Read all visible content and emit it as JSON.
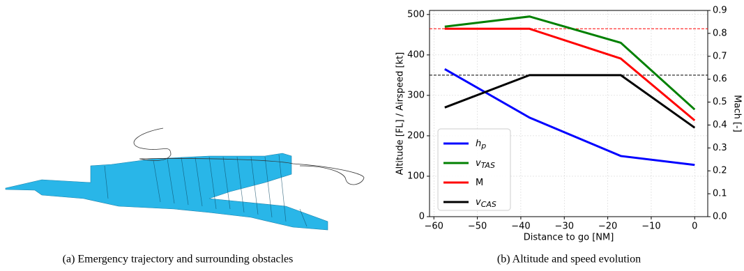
{
  "captions": {
    "a": "(a) Emergency trajectory and surrounding obstacles",
    "b": "(b) Altitude and speed evolution"
  },
  "chart_data": {
    "type": "line",
    "xlabel": "Distance to go [NM]",
    "ylabel": "Altitude [FL] / Airspeed [kt]",
    "y2label": "Mach [-]",
    "x": [
      -57.5,
      -38,
      -17,
      0
    ],
    "series": [
      {
        "name": "h",
        "subscript": "p",
        "color": "#0000ff",
        "values": [
          365,
          245,
          150,
          128
        ]
      },
      {
        "name": "v",
        "subscript": "TAS",
        "color": "#008000",
        "values": [
          470,
          495,
          430,
          265
        ]
      },
      {
        "name": "M",
        "color": "#ff0000",
        "axis": "y2",
        "values": [
          0.82,
          0.82,
          0.69,
          0.42
        ]
      },
      {
        "name": "v",
        "subscript": "CAS",
        "color": "#000000",
        "values": [
          270,
          350,
          350,
          220
        ]
      }
    ],
    "hlines": [
      {
        "value": 0.82,
        "axis": "y2",
        "color": "#ff0000"
      },
      {
        "value": 350,
        "color": "#000000"
      }
    ],
    "xlim": [
      -61,
      3
    ],
    "xticks": [
      {
        "value": -60,
        "label": "−60"
      },
      {
        "value": -50,
        "label": "−50"
      },
      {
        "value": -40,
        "label": "−40"
      },
      {
        "value": -30,
        "label": "−30"
      },
      {
        "value": -20,
        "label": "−20"
      },
      {
        "value": -10,
        "label": "−10"
      },
      0
    ],
    "ylim": [
      0,
      510
    ],
    "yticks": [
      0,
      100,
      200,
      300,
      400,
      500
    ],
    "y2lim": [
      0,
      0.9
    ],
    "y2ticks": [
      {
        "value": 0,
        "label": "0.0"
      },
      0.1,
      0.2,
      0.3,
      0.4,
      0.5,
      0.6,
      0.7,
      0.8,
      0.9
    ],
    "grid": true,
    "legend": "lower left"
  }
}
